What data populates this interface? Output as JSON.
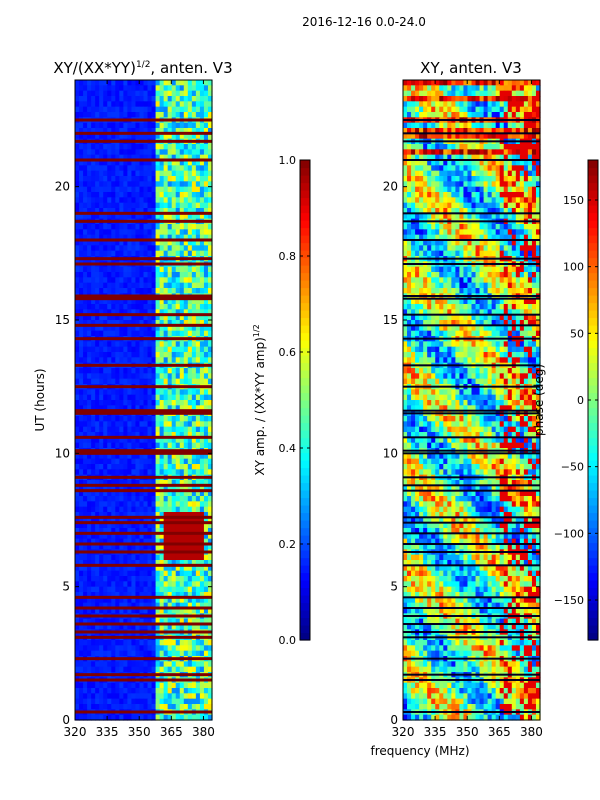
{
  "figure": {
    "suptitle": "2016-12-16 0.0-24.0",
    "xlabel": "frequency (MHz)"
  },
  "chart_data": [
    {
      "type": "heatmap",
      "title": "XY/(XX*YY)",
      "title_exp": "1/2",
      "title_suffix": ", anten. V3",
      "ylabel": "UT (hours)",
      "xlim": [
        320,
        384
      ],
      "ylim": [
        0,
        24
      ],
      "xticks": [
        "320",
        "335",
        "350",
        "365",
        "380"
      ],
      "xtick_values": [
        320,
        335,
        350,
        365,
        380
      ],
      "yticks": [
        "0",
        "5",
        "10",
        "15",
        "20"
      ],
      "ytick_values": [
        0,
        5,
        10,
        15,
        20
      ],
      "colorbar": {
        "label": "XY amp. / (XX*YY amp)",
        "label_exp": "1/2",
        "range": [
          0.0,
          1.0
        ],
        "ticks": [
          "0.0",
          "0.2",
          "0.4",
          "0.6",
          "0.8",
          "1.0"
        ],
        "tick_values": [
          0.0,
          0.2,
          0.4,
          0.6,
          0.8,
          1.0
        ],
        "colormap": "jet"
      },
      "flagged_rows_hours": [
        0.3,
        1.5,
        1.7,
        2.3,
        3.1,
        3.3,
        3.6,
        3.9,
        4.2,
        4.6,
        5.8,
        6.3,
        6.6,
        7.0,
        7.4,
        7.6,
        8.6,
        8.8,
        9.1,
        10.0,
        10.1,
        10.6,
        11.5,
        11.6,
        12.5,
        13.3,
        14.3,
        14.8,
        15.2,
        15.8,
        15.9,
        17.1,
        17.3,
        18.0,
        18.7,
        19.0,
        21.0,
        21.7,
        22.0,
        22.5
      ],
      "band_high_values_mhz": [
        357,
        384
      ]
    },
    {
      "type": "heatmap",
      "title": "XY, anten. V3",
      "ylabel": "",
      "xlim": [
        320,
        384
      ],
      "ylim": [
        0,
        24
      ],
      "xticks": [
        "320",
        "335",
        "350",
        "365",
        "380"
      ],
      "xtick_values": [
        320,
        335,
        350,
        365,
        380
      ],
      "yticks": [
        "0",
        "5",
        "10",
        "15",
        "20"
      ],
      "ytick_values": [
        0,
        5,
        10,
        15,
        20
      ],
      "colorbar": {
        "label": "phase (deg)",
        "range": [
          -180,
          180
        ],
        "ticks": [
          "−150",
          "−100",
          "−50",
          "0",
          "50",
          "100",
          "150"
        ],
        "tick_values": [
          -150,
          -100,
          -50,
          0,
          50,
          100,
          150
        ],
        "colormap": "jet"
      }
    }
  ]
}
